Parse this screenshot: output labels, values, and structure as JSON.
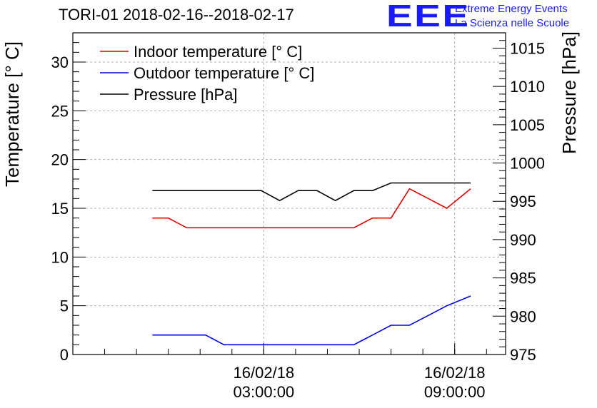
{
  "title": "TORI-01 2018-02-16--2018-02-17",
  "logo": {
    "mark": "EEE",
    "line1": "Extreme Energy Events",
    "line2": "La Scienza nelle Scuole"
  },
  "colors": {
    "indoor": "#e00000",
    "outdoor": "#0000e0",
    "pressure": "#000000",
    "logo": "#1a1aff",
    "grid": "#b0b0b0"
  },
  "chart_data": {
    "type": "line",
    "title": "TORI-01 2018-02-16--2018-02-17",
    "ylabel": "Temperature [° C]",
    "y2label": "Pressure [hPa]",
    "ylim": [
      0,
      33
    ],
    "y2lim": [
      975,
      1017
    ],
    "yticks": [
      "0",
      "5",
      "10",
      "15",
      "20",
      "25",
      "30"
    ],
    "y2ticks": [
      "975",
      "980",
      "985",
      "990",
      "995",
      "1000",
      "1005",
      "1010",
      "1015"
    ],
    "xlim": [
      -3.0,
      10.6
    ],
    "xticks": [
      {
        "x": 3,
        "date": "16/02/18",
        "time": "03:00:00"
      },
      {
        "x": 9,
        "date": "16/02/18",
        "time": "09:00:00"
      }
    ],
    "grid": true,
    "legend": "top-left",
    "x": [
      -0.5,
      0.0,
      0.58,
      1.17,
      1.75,
      2.33,
      2.92,
      3.5,
      4.08,
      4.67,
      5.25,
      5.83,
      6.42,
      7.0,
      7.58,
      8.17,
      8.75,
      9.5
    ],
    "series": [
      {
        "name": "Indoor temperature [° C]",
        "axis": "left",
        "color": "#e00000",
        "values": [
          14,
          14,
          13,
          13,
          13,
          13,
          13,
          13,
          13,
          13,
          13,
          13,
          14,
          14,
          17,
          16,
          15,
          17
        ]
      },
      {
        "name": "Outdoor temperature [° C]",
        "axis": "left",
        "color": "#0000e0",
        "values": [
          2,
          2,
          2,
          2,
          1,
          1,
          1,
          1,
          1,
          1,
          1,
          1,
          2,
          3,
          3,
          4,
          5,
          6
        ]
      },
      {
        "name": "Pressure [hPa]",
        "axis": "right",
        "color": "#000000",
        "values": [
          996.4,
          996.4,
          996.4,
          996.4,
          996.4,
          996.4,
          996.4,
          995.1,
          996.4,
          996.4,
          995.1,
          996.4,
          996.4,
          997.4,
          997.4,
          997.4,
          997.4,
          997.4
        ]
      }
    ]
  }
}
